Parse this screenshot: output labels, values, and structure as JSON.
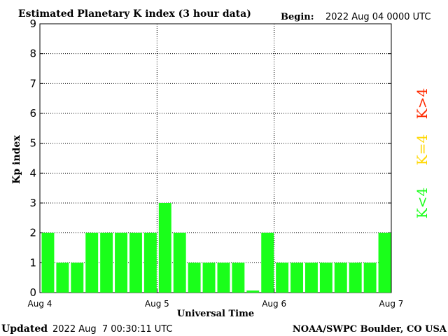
{
  "chart_data": {
    "type": "bar",
    "title": "Estimated Planetary K index (3 hour data)",
    "begin_label": "Begin:",
    "begin_value": "2022 Aug 04 0000 UTC",
    "xlabel": "Universal Time",
    "ylabel": "Kp index",
    "ylim": [
      0,
      9
    ],
    "y_ticks": [
      "0",
      "1",
      "2",
      "3",
      "4",
      "5",
      "6",
      "7",
      "8",
      "9"
    ],
    "x_ticks": [
      "Aug 4",
      "Aug 5",
      "Aug 6",
      "Aug 7"
    ],
    "grid": true,
    "interval_hours": 3,
    "values": [
      2,
      1,
      1,
      2,
      2,
      2,
      2,
      2,
      3,
      2,
      1,
      1,
      1,
      1,
      0.07,
      2,
      1,
      1,
      1,
      1,
      1,
      1,
      1,
      2
    ],
    "colors": {
      "below": "#1aff1a",
      "equal": "#ffd700",
      "above": "#ff2a00"
    },
    "legend": [
      "K<4",
      "K=4",
      "K>4"
    ]
  },
  "footer": {
    "updated_label": "Updated",
    "updated_value": "2022 Aug  7 00:30:11 UTC",
    "source": "NOAA/SWPC Boulder, CO USA"
  }
}
